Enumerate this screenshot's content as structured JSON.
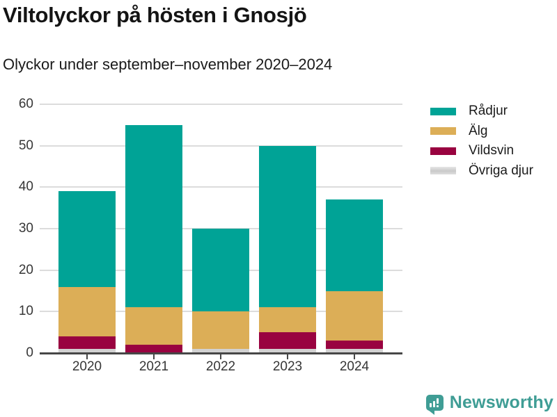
{
  "header": {
    "title": "Viltolyckor på hösten i Gnosjö",
    "subtitle": "Olyckor under september–november 2020–2024"
  },
  "chart_data": {
    "type": "bar",
    "stacked": true,
    "title": "Viltolyckor på hösten i Gnosjö",
    "subtitle": "Olyckor under september–november 2020–2024",
    "categories": [
      "2020",
      "2021",
      "2022",
      "2023",
      "2024"
    ],
    "series": [
      {
        "name": "Rådjur",
        "color": "#00a396",
        "values": [
          23,
          44,
          20,
          39,
          22
        ]
      },
      {
        "name": "Älg",
        "color": "#dcae57",
        "values": [
          12,
          9,
          9,
          6,
          12
        ]
      },
      {
        "name": "Vildsvin",
        "color": "#990340",
        "values": [
          3,
          2,
          0,
          4,
          2
        ]
      },
      {
        "name": "Övriga djur",
        "color": "#d2d2d2",
        "values": [
          1,
          0,
          1,
          1,
          1
        ]
      }
    ],
    "stack_order_bottom_to_top": [
      "Övriga djur",
      "Vildsvin",
      "Älg",
      "Rådjur"
    ],
    "totals": [
      39,
      55,
      30,
      50,
      37
    ],
    "xlabel": "",
    "ylabel": "",
    "ylim": [
      0,
      60
    ],
    "yticks": [
      0,
      10,
      20,
      30,
      40,
      50,
      60
    ],
    "grid": "horizontal",
    "legend_position": "right"
  },
  "colors": {
    "axis_line": "#474747",
    "grid_line": "#dcdcdc",
    "tick_label": "#363636",
    "text": "#1a1a1a"
  },
  "branding": {
    "logo_text": "Newsworthy",
    "logo_color": "#3f9d95"
  }
}
